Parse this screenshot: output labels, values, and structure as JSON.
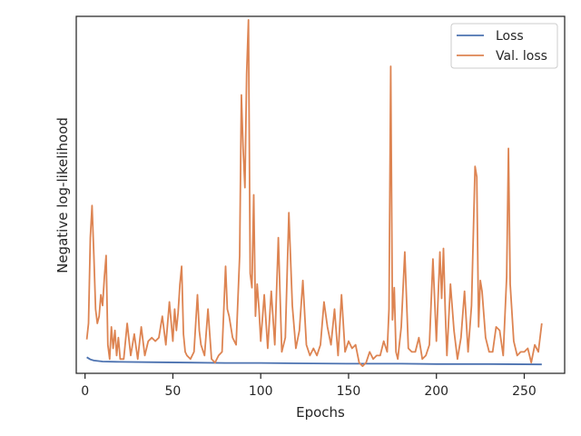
{
  "chart_data": {
    "type": "line",
    "title": "",
    "xlabel": "Epochs",
    "ylabel": "Negative log-likelihood",
    "xlim": [
      -5,
      273
    ],
    "ylim": [
      0,
      100
    ],
    "x_ticks": [
      0,
      50,
      100,
      150,
      200,
      250
    ],
    "y_ticks": [],
    "grid": false,
    "legend": {
      "placement": "top-right"
    },
    "series": [
      {
        "name": "Loss",
        "color": "#4c72b0",
        "x": [
          1,
          3,
          5,
          10,
          20,
          40,
          60,
          80,
          100,
          120,
          150,
          180,
          200,
          230,
          260
        ],
        "y": [
          4.5,
          3.9,
          3.6,
          3.3,
          3.2,
          3.1,
          3.0,
          2.9,
          2.9,
          2.8,
          2.7,
          2.7,
          2.6,
          2.6,
          2.5
        ]
      },
      {
        "name": "Val. loss",
        "color": "#dd8452",
        "x": [
          1,
          2,
          3,
          4,
          5,
          6,
          7,
          8,
          9,
          10,
          11,
          12,
          13,
          14,
          15,
          16,
          17,
          18,
          19,
          20,
          22,
          24,
          26,
          28,
          30,
          32,
          34,
          36,
          38,
          40,
          42,
          44,
          46,
          48,
          50,
          51,
          52,
          53,
          54,
          55,
          56,
          57,
          58,
          60,
          62,
          64,
          65,
          66,
          68,
          70,
          72,
          74,
          76,
          78,
          80,
          81,
          82,
          84,
          86,
          88,
          89,
          90,
          91,
          92,
          93,
          94,
          95,
          96,
          97,
          98,
          99,
          100,
          102,
          104,
          106,
          108,
          110,
          112,
          114,
          116,
          118,
          120,
          122,
          124,
          126,
          128,
          130,
          132,
          134,
          136,
          138,
          140,
          142,
          144,
          146,
          148,
          150,
          152,
          154,
          156,
          158,
          160,
          162,
          164,
          166,
          168,
          170,
          172,
          173,
          174,
          175,
          176,
          177,
          178,
          180,
          182,
          184,
          186,
          188,
          190,
          192,
          194,
          196,
          198,
          200,
          202,
          203,
          204,
          205,
          206,
          208,
          210,
          212,
          214,
          216,
          218,
          220,
          222,
          223,
          224,
          225,
          226,
          228,
          230,
          232,
          234,
          236,
          238,
          240,
          241,
          242,
          244,
          246,
          248,
          250,
          252,
          254,
          256,
          258,
          260
        ],
        "y": [
          9.5,
          14,
          38,
          47,
          33,
          18,
          14,
          16,
          22,
          19,
          27,
          33,
          8,
          4,
          13,
          7,
          12,
          5,
          10,
          4,
          4,
          14,
          5,
          11,
          4,
          13,
          5,
          9,
          10,
          9,
          10,
          16,
          8,
          20,
          9,
          18,
          12,
          17,
          25,
          30,
          11,
          6,
          5,
          4,
          6,
          22,
          12,
          8,
          5,
          18,
          4,
          3,
          5,
          6,
          30,
          18,
          16,
          10,
          8,
          33,
          78,
          63,
          52,
          84,
          99,
          28,
          24,
          50,
          16,
          25,
          18,
          9,
          22,
          7,
          23,
          8,
          38,
          6,
          10,
          45,
          19,
          7,
          12,
          26,
          8,
          5,
          7,
          5,
          8,
          20,
          13,
          8,
          18,
          5,
          22,
          6,
          9,
          7,
          8,
          3,
          2,
          3,
          6,
          4,
          5,
          5,
          9,
          6,
          18,
          86,
          15,
          24,
          6,
          4,
          13,
          34,
          7,
          6,
          6,
          10,
          4,
          5,
          8,
          32,
          9,
          34,
          21,
          35,
          18,
          5,
          25,
          12,
          4,
          10,
          23,
          6,
          19,
          58,
          55,
          13,
          26,
          23,
          10,
          6,
          6,
          13,
          12,
          5,
          27,
          63,
          25,
          9,
          5,
          6,
          6,
          7,
          3,
          8,
          6,
          14
        ]
      }
    ]
  }
}
